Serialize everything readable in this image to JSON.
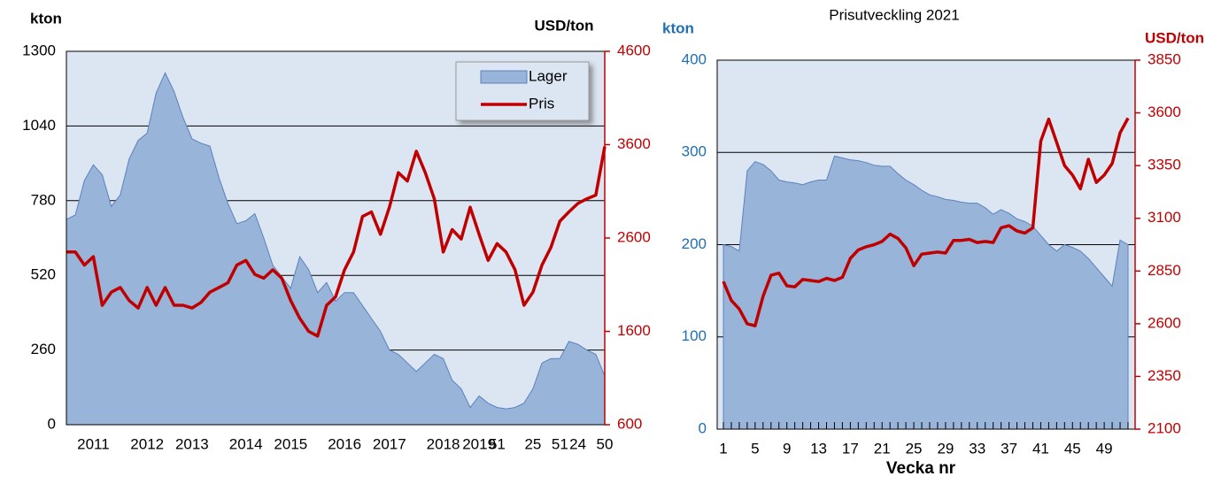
{
  "chart_data": [
    {
      "type": "combo",
      "ylabel": "kton",
      "y2label": "USD/ton",
      "ycolor": "#000000",
      "y2color": "#c00000",
      "ylim": [
        0,
        1300
      ],
      "yticks": [
        0,
        260,
        520,
        780,
        1040,
        1300
      ],
      "y2lim": [
        600,
        4600
      ],
      "y2ticks": [
        600,
        1600,
        2600,
        3600,
        4600
      ],
      "grid": true,
      "legend": "upper right",
      "categories": [
        null,
        null,
        null,
        "2011",
        null,
        null,
        null,
        null,
        null,
        "2012",
        null,
        null,
        null,
        null,
        "2013",
        null,
        null,
        null,
        null,
        null,
        "2014",
        null,
        null,
        null,
        null,
        "2015",
        null,
        null,
        null,
        null,
        null,
        "2016",
        null,
        null,
        null,
        null,
        "2017",
        null,
        null,
        null,
        null,
        null,
        "2018",
        null,
        null,
        null,
        "2019",
        null,
        "51",
        null,
        null,
        null,
        "25",
        null,
        null,
        "51",
        null,
        "24",
        null,
        null,
        "50"
      ],
      "series": [
        {
          "name": "Lager",
          "type": "area",
          "color": "#98b4d9",
          "axis": "y",
          "values": [
            715,
            730,
            850,
            905,
            870,
            760,
            800,
            925,
            990,
            1015,
            1155,
            1225,
            1160,
            1070,
            995,
            980,
            970,
            860,
            770,
            700,
            710,
            735,
            650,
            555,
            515,
            475,
            585,
            540,
            460,
            495,
            430,
            460,
            460,
            415,
            370,
            325,
            260,
            245,
            215,
            185,
            215,
            245,
            230,
            155,
            125,
            60,
            100,
            75,
            60,
            55,
            60,
            75,
            125,
            215,
            230,
            230,
            290,
            280,
            260,
            245,
            170
          ]
        },
        {
          "name": "Pris",
          "type": "line",
          "color": "#c00000",
          "axis": "y2",
          "values": [
            2450,
            2450,
            2310,
            2400,
            1880,
            2020,
            2070,
            1930,
            1850,
            2070,
            1880,
            2070,
            1880,
            1880,
            1850,
            1910,
            2020,
            2070,
            2120,
            2310,
            2360,
            2210,
            2170,
            2260,
            2170,
            1930,
            1740,
            1600,
            1550,
            1880,
            1970,
            2260,
            2450,
            2830,
            2880,
            2640,
            2930,
            3300,
            3210,
            3530,
            3300,
            3020,
            2450,
            2690,
            2590,
            2930,
            2640,
            2360,
            2540,
            2450,
            2260,
            1880,
            2020,
            2310,
            2500,
            2780,
            2880,
            2970,
            3020,
            3060,
            3580
          ]
        }
      ]
    },
    {
      "type": "combo",
      "title": "Prisutveckling 2021",
      "xlabel": "Vecka nr",
      "ylabel": "kton",
      "y2label": "USD/ton",
      "ycolor": "#1f6fb5",
      "y2color": "#c00000",
      "ylim": [
        0,
        400
      ],
      "yticks": [
        0,
        100,
        200,
        300,
        400
      ],
      "y2lim": [
        2100,
        3850
      ],
      "y2ticks": [
        2100,
        2350,
        2600,
        2850,
        3100,
        3350,
        3600,
        3850
      ],
      "grid": true,
      "categories": [
        "1",
        null,
        null,
        null,
        "5",
        null,
        null,
        null,
        "9",
        null,
        null,
        null,
        "13",
        null,
        null,
        null,
        "17",
        null,
        null,
        null,
        "21",
        null,
        null,
        null,
        "25",
        null,
        null,
        null,
        "29",
        null,
        null,
        null,
        "33",
        null,
        null,
        null,
        "37",
        null,
        null,
        null,
        "41",
        null,
        null,
        null,
        "45",
        null,
        null,
        null,
        "49",
        null,
        null,
        null
      ],
      "series": [
        {
          "name": "Lager",
          "type": "area",
          "color": "#98b4d9",
          "axis": "y",
          "values": [
            200,
            198,
            193,
            280,
            290,
            287,
            280,
            270,
            268,
            267,
            265,
            268,
            270,
            270,
            296,
            294,
            292,
            291,
            289,
            286,
            285,
            285,
            277,
            270,
            265,
            259,
            254,
            252,
            249,
            248,
            246,
            245,
            245,
            240,
            233,
            238,
            234,
            228,
            225,
            220,
            210,
            200,
            193,
            200,
            197,
            193,
            185,
            175,
            165,
            155,
            205,
            200
          ]
        },
        {
          "name": "Pris",
          "type": "line",
          "color": "#c00000",
          "axis": "y2",
          "values": [
            2800,
            2710,
            2670,
            2600,
            2590,
            2730,
            2830,
            2840,
            2780,
            2775,
            2810,
            2805,
            2800,
            2815,
            2805,
            2820,
            2910,
            2950,
            2965,
            2975,
            2990,
            3025,
            3005,
            2960,
            2875,
            2930,
            2935,
            2940,
            2935,
            2995,
            2995,
            3000,
            2985,
            2990,
            2985,
            3055,
            3065,
            3040,
            3030,
            3055,
            3465,
            3570,
            3460,
            3350,
            3305,
            3240,
            3380,
            3270,
            3305,
            3360,
            3505,
            3575
          ]
        }
      ]
    }
  ]
}
